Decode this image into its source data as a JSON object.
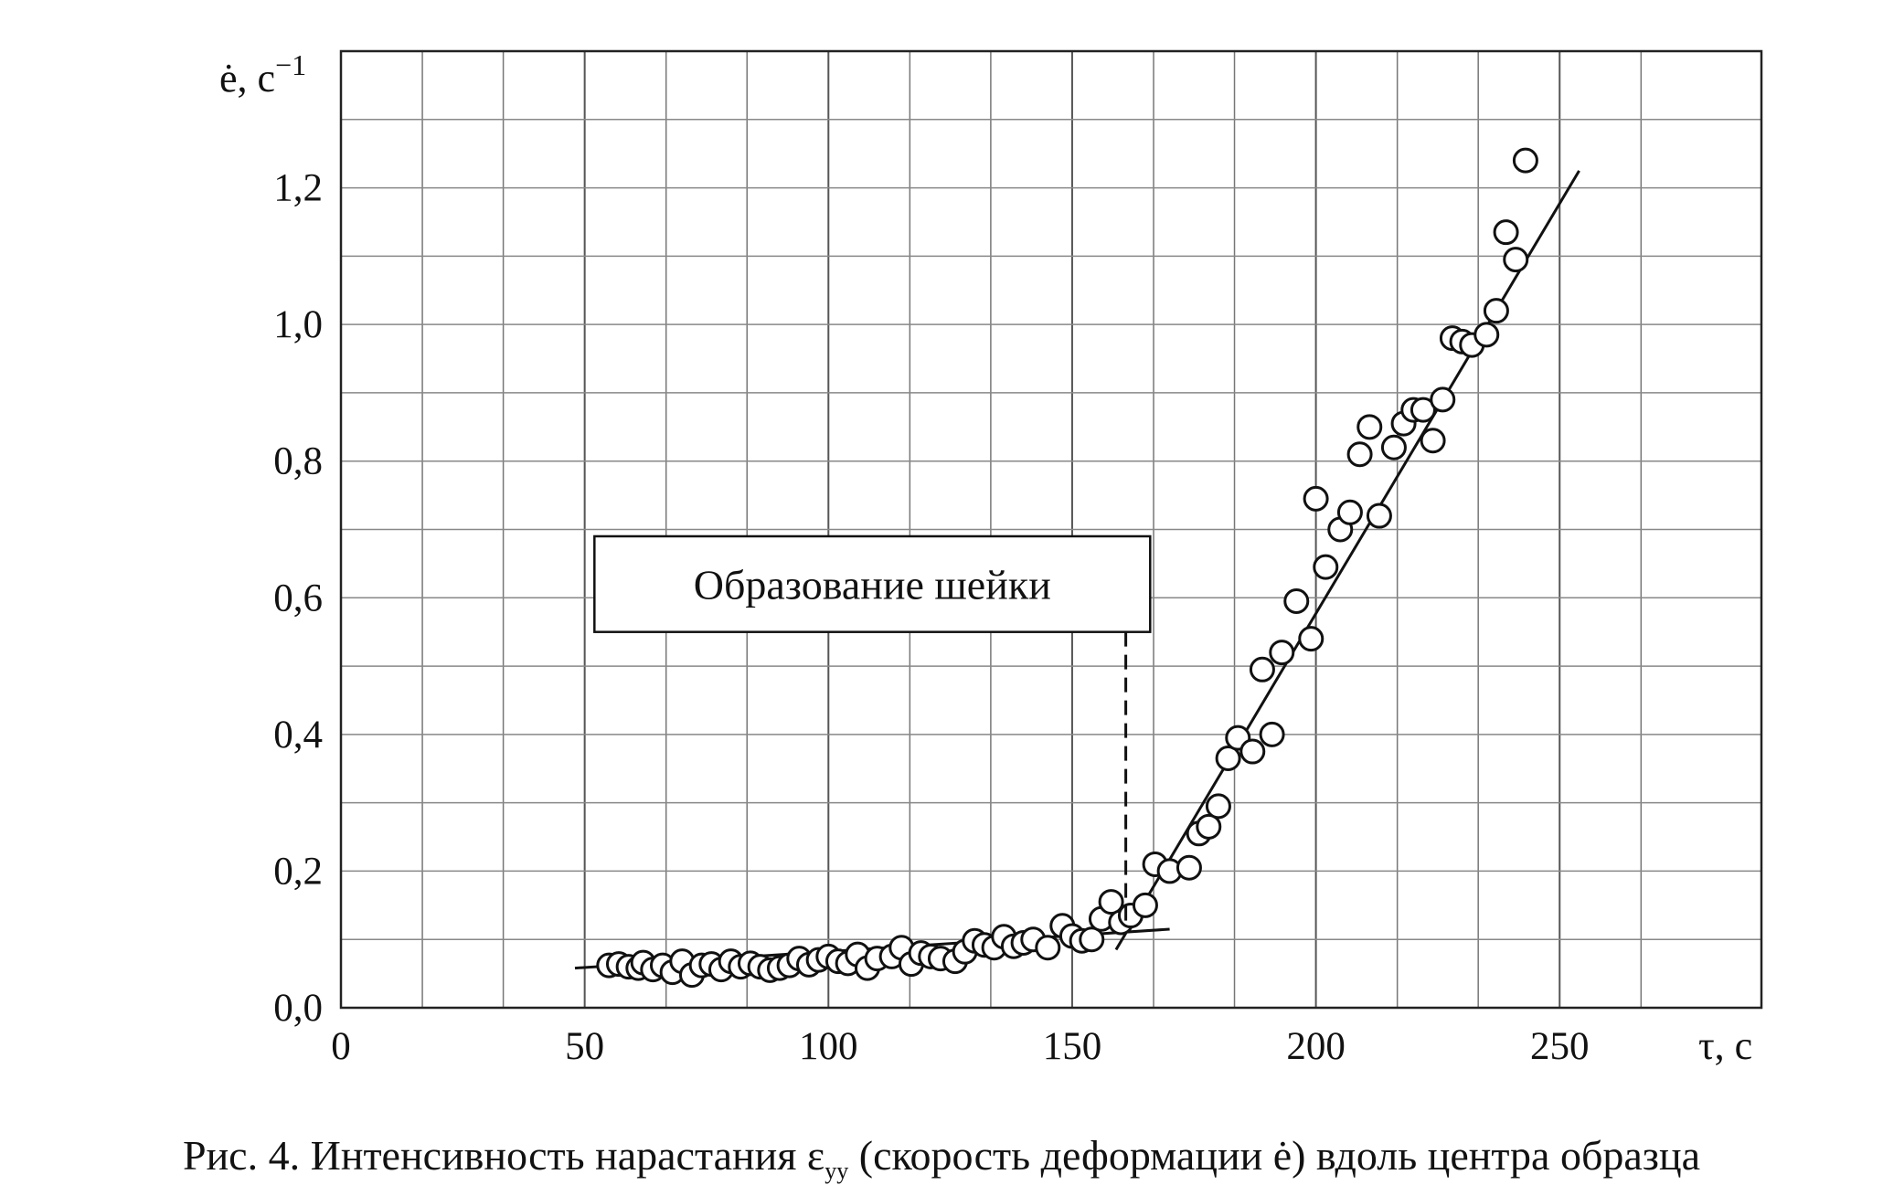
{
  "chart_data": {
    "type": "scatter",
    "title": "",
    "ylabel_html": "ė, с<sup>−1</sup>",
    "ylabel_main": "ė, с",
    "ylabel_sup": "−1",
    "xlabel": "τ, с",
    "xlim": [
      0,
      262
    ],
    "ylim": [
      0,
      1.4
    ],
    "x_ticks": [
      0,
      50,
      100,
      150,
      200,
      250
    ],
    "x_tick_labels": [
      "0",
      "50",
      "100",
      "150",
      "200",
      "250"
    ],
    "y_ticks": [
      0.0,
      0.2,
      0.4,
      0.6,
      0.8,
      1.0,
      1.2
    ],
    "y_tick_labels": [
      "0,0",
      "0,2",
      "0,4",
      "0,6",
      "0,8",
      "1,0",
      "1,2"
    ],
    "grid": true,
    "vertical_gridlines_x": [
      16.7,
      33.3,
      50,
      66.7,
      83.3,
      100,
      116.7,
      133.3,
      150,
      166.7,
      183.3,
      200,
      216.7,
      233.3,
      250,
      266.7
    ],
    "points": [
      [
        55,
        0.062
      ],
      [
        57,
        0.064
      ],
      [
        59,
        0.06
      ],
      [
        61,
        0.058
      ],
      [
        62,
        0.066
      ],
      [
        64,
        0.056
      ],
      [
        66,
        0.062
      ],
      [
        68,
        0.052
      ],
      [
        70,
        0.068
      ],
      [
        72,
        0.048
      ],
      [
        74,
        0.062
      ],
      [
        76,
        0.064
      ],
      [
        78,
        0.056
      ],
      [
        80,
        0.068
      ],
      [
        82,
        0.06
      ],
      [
        84,
        0.065
      ],
      [
        86,
        0.06
      ],
      [
        88,
        0.055
      ],
      [
        90,
        0.058
      ],
      [
        92,
        0.062
      ],
      [
        94,
        0.072
      ],
      [
        96,
        0.063
      ],
      [
        98,
        0.07
      ],
      [
        100,
        0.075
      ],
      [
        102,
        0.068
      ],
      [
        104,
        0.065
      ],
      [
        106,
        0.078
      ],
      [
        108,
        0.058
      ],
      [
        110,
        0.072
      ],
      [
        113,
        0.075
      ],
      [
        115,
        0.088
      ],
      [
        117,
        0.064
      ],
      [
        119,
        0.08
      ],
      [
        121,
        0.075
      ],
      [
        123,
        0.072
      ],
      [
        126,
        0.068
      ],
      [
        128,
        0.082
      ],
      [
        130,
        0.098
      ],
      [
        132,
        0.092
      ],
      [
        134,
        0.088
      ],
      [
        136,
        0.104
      ],
      [
        138,
        0.09
      ],
      [
        140,
        0.095
      ],
      [
        142,
        0.1
      ],
      [
        145,
        0.088
      ],
      [
        148,
        0.12
      ],
      [
        150,
        0.105
      ],
      [
        152,
        0.098
      ],
      [
        154,
        0.1
      ],
      [
        156,
        0.13
      ],
      [
        158,
        0.155
      ],
      [
        160,
        0.125
      ],
      [
        162,
        0.135
      ],
      [
        165,
        0.15
      ],
      [
        167,
        0.21
      ],
      [
        170,
        0.2
      ],
      [
        174,
        0.205
      ],
      [
        176,
        0.255
      ],
      [
        178,
        0.265
      ],
      [
        180,
        0.295
      ],
      [
        182,
        0.365
      ],
      [
        184,
        0.395
      ],
      [
        187,
        0.375
      ],
      [
        189,
        0.495
      ],
      [
        191,
        0.4
      ],
      [
        193,
        0.52
      ],
      [
        196,
        0.595
      ],
      [
        199,
        0.54
      ],
      [
        200,
        0.745
      ],
      [
        202,
        0.645
      ],
      [
        205,
        0.7
      ],
      [
        207,
        0.725
      ],
      [
        209,
        0.81
      ],
      [
        211,
        0.85
      ],
      [
        213,
        0.72
      ],
      [
        216,
        0.82
      ],
      [
        218,
        0.855
      ],
      [
        220,
        0.875
      ],
      [
        222,
        0.875
      ],
      [
        224,
        0.83
      ],
      [
        226,
        0.89
      ],
      [
        228,
        0.98
      ],
      [
        230,
        0.975
      ],
      [
        232,
        0.97
      ],
      [
        235,
        0.985
      ],
      [
        237,
        1.02
      ],
      [
        239,
        1.135
      ],
      [
        241,
        1.095
      ],
      [
        243,
        1.24
      ]
    ],
    "fit_line_flat": [
      [
        48,
        0.058
      ],
      [
        170,
        0.115
      ]
    ],
    "fit_line_steep": [
      [
        159,
        0.085
      ],
      [
        254,
        1.225
      ]
    ],
    "annotation": {
      "text": "Образование шейки",
      "box_x": [
        52,
        166
      ],
      "box_y": [
        0.55,
        0.69
      ],
      "dashed_x": 161,
      "dashed_y": [
        0.55,
        0.12
      ]
    }
  },
  "caption": {
    "prefix": "Рис. 4. Интенсивность нарастания ε",
    "subscript": "yy",
    "suffix": " (скорость деформации ė) вдоль центра образца"
  }
}
